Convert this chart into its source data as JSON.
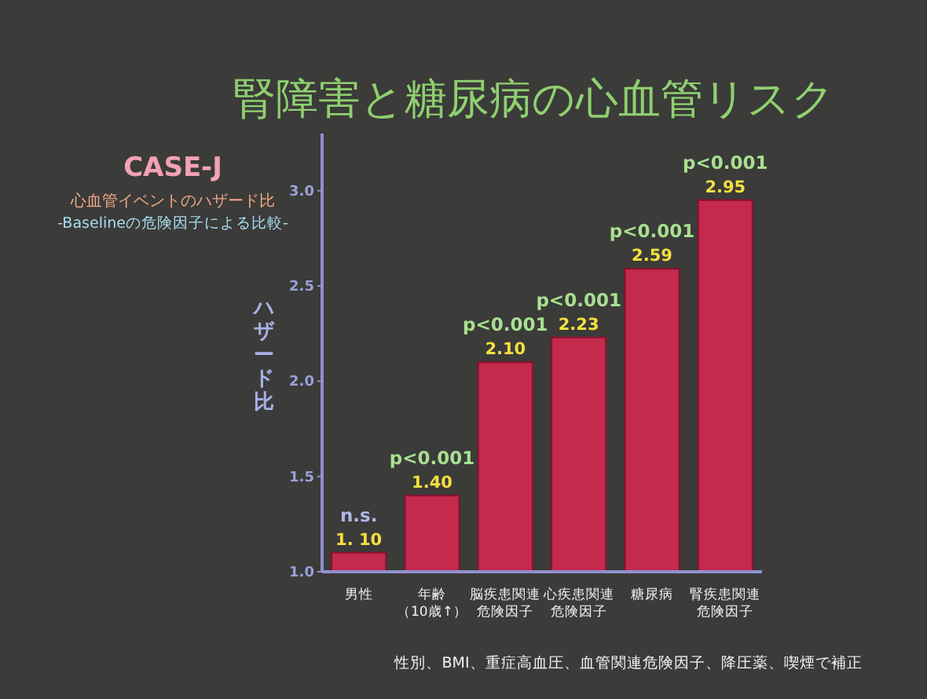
{
  "chart_data": {
    "type": "bar",
    "title": "腎障害と糖尿病の心血管リスク",
    "subtitle": "CASE-J",
    "ylabel": "ハザード比",
    "categories": [
      "男性",
      "年齢（10歳↑）",
      "脳疾患関連危険因子",
      "心疾患関連危険因子",
      "糖尿病",
      "腎疾患関連危険因子"
    ],
    "values": [
      1.1,
      1.4,
      2.1,
      2.23,
      2.59,
      2.95
    ],
    "color": "#c42a4c",
    "value_labels": [
      "1. 10",
      "1.40",
      "2.10",
      "2.23",
      "2.59",
      "2.95"
    ],
    "ylim": [
      1.0,
      3.3
    ],
    "yticks": [
      {
        "value": 1.0,
        "label": "1.0"
      },
      {
        "value": 1.5,
        "label": "1.5"
      },
      {
        "value": 2.0,
        "label": "2.0"
      },
      {
        "value": 2.5,
        "label": "2.5"
      },
      {
        "value": 3.0,
        "label": "3.0"
      }
    ],
    "annotations": [
      "心血管イベントのハザード比",
      "-Baselineの危険因子による比較-",
      {
        "text": "n.s.",
        "x": "男性",
        "y": 1.1
      },
      {
        "text": "p<0.001",
        "x": "年齢（10歳↑）",
        "y": 1.4
      },
      {
        "text": "p<0.001",
        "x": "脳疾患関連危険因子",
        "y": 2.1
      },
      {
        "text": "p<0.001",
        "x": "心疾患関連危険因子",
        "y": 2.23
      },
      {
        "text": "p<0.001",
        "x": "糖尿病",
        "y": 2.59
      },
      {
        "text": "p<0.001",
        "x": "腎疾患関連危険因子",
        "y": 2.95
      },
      "性別、BMI、重症高血圧、血管関連危険因子、降圧薬、喫煙で補正"
    ]
  }
}
